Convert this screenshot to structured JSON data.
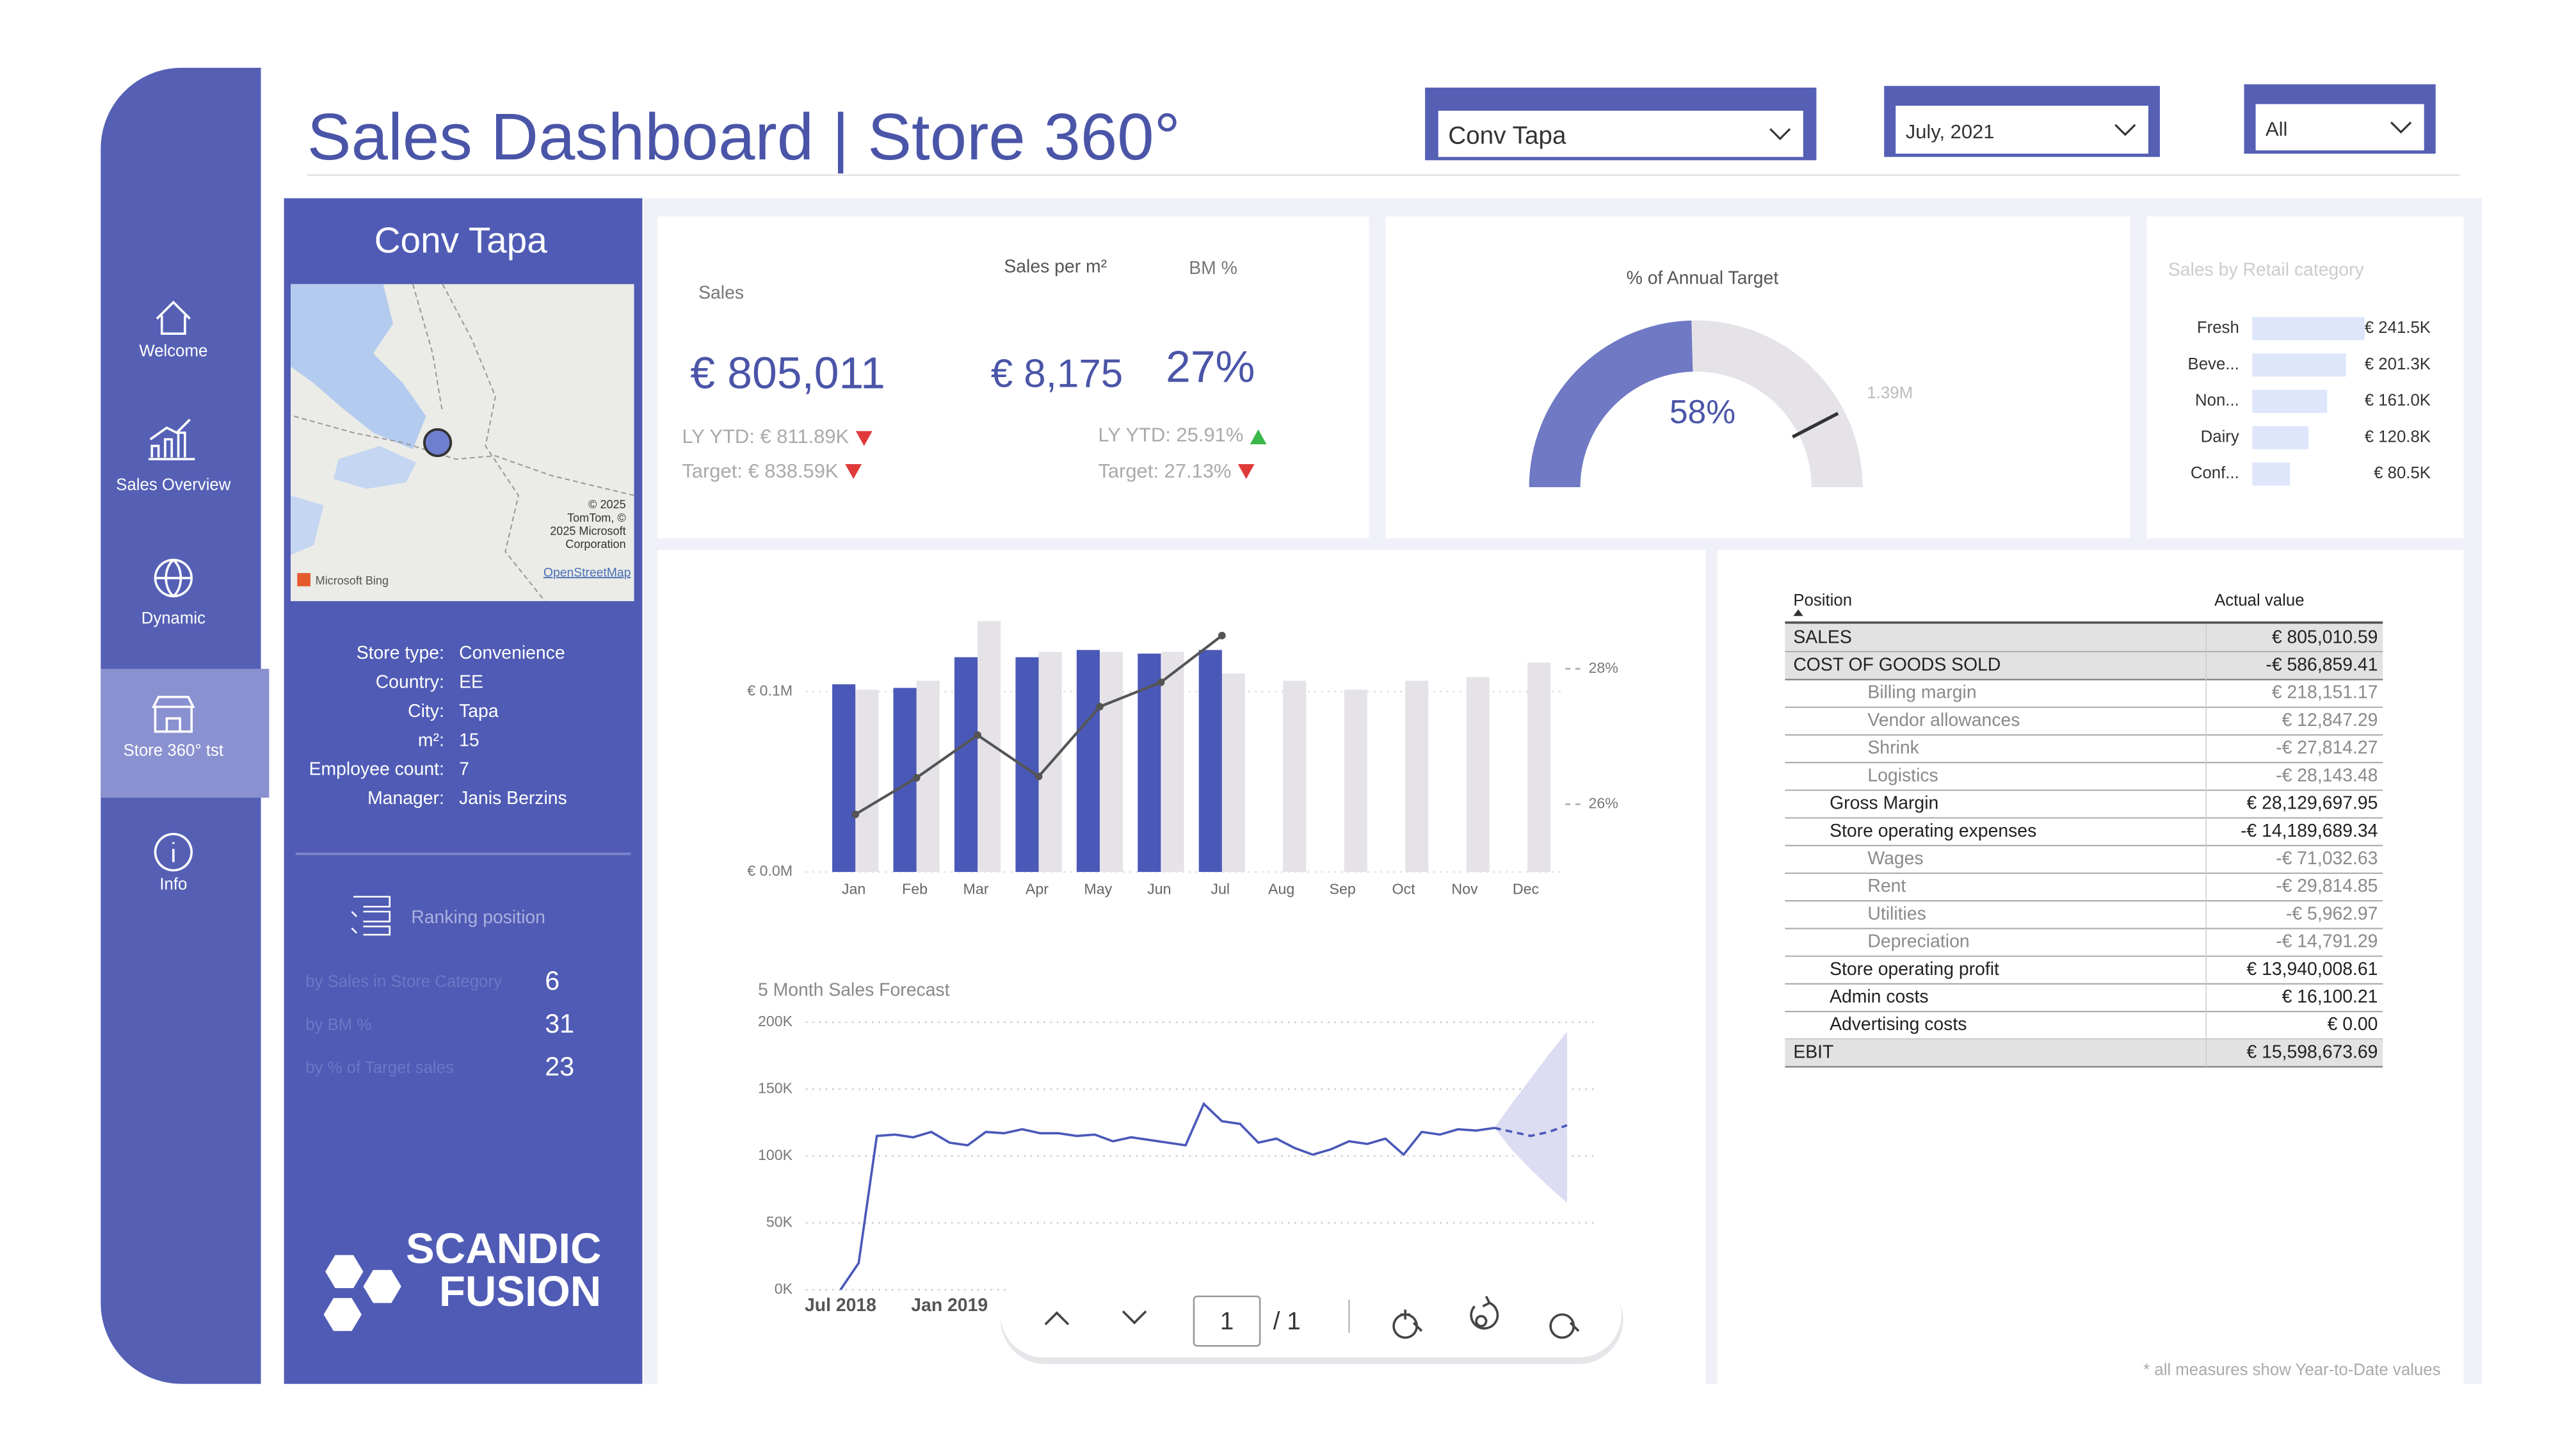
{
  "header": {
    "title": "Sales Dashboard | Store 360°",
    "filters": [
      "Conv Tapa",
      "July, 2021",
      "All"
    ]
  },
  "nav": [
    "Welcome",
    "Sales Overview",
    "Dynamic",
    "Store 360° tst",
    "Info"
  ],
  "store": {
    "name": "Conv Tapa",
    "map_credits": [
      "© 2025",
      "TomTom, ©",
      "2025 Microsoft",
      "Corporation"
    ],
    "map_link": "OpenStreetMap",
    "map_brand": "Microsoft Bing",
    "details": [
      [
        "Store type:",
        "Convenience"
      ],
      [
        "Country:",
        "EE"
      ],
      [
        "City:",
        "Tapa"
      ],
      [
        "m²:",
        "15"
      ],
      [
        "Employee count:",
        "7"
      ],
      [
        "Manager:",
        "Janis Berzins"
      ]
    ],
    "ranking_title": "Ranking position",
    "ranking": [
      [
        "by Sales in Store Category",
        6
      ],
      [
        "by BM %",
        31
      ],
      [
        "by % of Target sales",
        23
      ]
    ],
    "logo": [
      "SCANDIC",
      "FUSION"
    ]
  },
  "kpis": {
    "sales": {
      "label": "Sales",
      "value": "€ 805,011",
      "ly": "LY YTD: € 811.89K",
      "target": "Target: € 838.59K"
    },
    "per_m2": {
      "label": "Sales per m²",
      "value": "€ 8,175"
    },
    "bm": {
      "label": "BM %",
      "value": "27%",
      "ly": "LY YTD: 25.91%",
      "target": "Target: 27.13%"
    }
  },
  "chart_data": [
    {
      "type": "gauge",
      "title": "% of Annual Target",
      "values": [
        58
      ],
      "value_labels": [
        "58%"
      ],
      "ylim": [
        0,
        118
      ],
      "yticks": [
        {
          "value": 100,
          "label": "1.39M"
        }
      ],
      "color": "#6f79c4",
      "track_color": "#e6e3e8"
    },
    {
      "type": "hbar",
      "title": "Sales by Retail category",
      "categories": [
        "Fresh",
        "Beve...",
        "Non...",
        "Dairy",
        "Conf..."
      ],
      "values": [
        241.5,
        201.3,
        161.0,
        120.8,
        80.5
      ],
      "value_labels": [
        "€ 241.5K",
        "€ 201.3K",
        "€ 161.0K",
        "€ 120.8K",
        "€ 80.5K"
      ],
      "xlim": [
        0,
        241.5
      ],
      "color": "#dde6fb"
    },
    {
      "type": "bar_line",
      "categories": [
        "Jan",
        "Feb",
        "Mar",
        "Apr",
        "May",
        "Jun",
        "Jul",
        "Aug",
        "Sep",
        "Oct",
        "Nov",
        "Dec"
      ],
      "series": [
        {
          "color": "#e6e3e8",
          "values": [
            0.101,
            0.106,
            0.139,
            0.122,
            0.122,
            0.122,
            0.11,
            0.106,
            0.101,
            0.106,
            0.108,
            0.116
          ]
        },
        {
          "color": "#4a58b8",
          "values": [
            0.104,
            0.102,
            0.119,
            0.119,
            0.123,
            0.121,
            0.123,
            null,
            null,
            null,
            null,
            null
          ]
        },
        {
          "type": "line",
          "axis": "y2",
          "color": "#555555",
          "values": [
            25.85,
            26.39,
            27.02,
            26.41,
            27.44,
            27.8,
            28.49,
            null,
            null,
            null,
            null,
            null
          ]
        }
      ],
      "ylim": [
        0,
        0.14
      ],
      "yticks": [
        {
          "value": 0,
          "label": "€ 0.0M"
        },
        {
          "value": 0.1,
          "label": "€ 0.1M"
        }
      ],
      "y2lim": [
        25,
        28.73
      ],
      "y2ticks": [
        {
          "value": 26,
          "label": "26%"
        },
        {
          "value": 28,
          "label": "28%"
        }
      ],
      "grid": true
    },
    {
      "type": "forecast",
      "title": "5 Month Sales Forecast",
      "categories": [
        "Jul 2018",
        null,
        null,
        null,
        null,
        null,
        "Jan 2019",
        null,
        null,
        null,
        null,
        null,
        null,
        null,
        null,
        null,
        null,
        null,
        null,
        null,
        null,
        null,
        null,
        null,
        null,
        null,
        null,
        null,
        null,
        null,
        null,
        null,
        null,
        null,
        null,
        null,
        null,
        null,
        null,
        null,
        null
      ],
      "series": [
        {
          "color": "#4a58b8",
          "values": [
            0,
            20,
            115,
            116,
            114,
            118,
            110,
            108,
            118,
            117,
            120,
            117,
            117,
            115,
            116,
            111,
            114,
            112,
            110,
            108,
            139,
            126,
            124,
            110,
            113,
            106,
            101,
            105,
            111,
            109,
            113,
            101,
            118,
            116,
            120,
            119,
            121,
            null,
            null,
            null,
            null
          ]
        },
        {
          "color": "#4a58b8",
          "dashed": true,
          "values": [
            null,
            null,
            null,
            null,
            null,
            null,
            null,
            null,
            null,
            null,
            null,
            null,
            null,
            null,
            null,
            null,
            null,
            null,
            null,
            null,
            null,
            null,
            null,
            null,
            null,
            null,
            null,
            null,
            null,
            null,
            null,
            null,
            null,
            null,
            null,
            null,
            121,
            118,
            115,
            118,
            123
          ]
        }
      ],
      "band": {
        "color": "#dcdcf2",
        "upper": [
          null,
          null,
          null,
          null,
          null,
          null,
          null,
          null,
          null,
          null,
          null,
          null,
          null,
          null,
          null,
          null,
          null,
          null,
          null,
          null,
          null,
          null,
          null,
          null,
          null,
          null,
          null,
          null,
          null,
          null,
          null,
          null,
          null,
          null,
          null,
          null,
          121,
          140,
          158,
          176,
          193
        ],
        "lower": [
          null,
          null,
          null,
          null,
          null,
          null,
          null,
          null,
          null,
          null,
          null,
          null,
          null,
          null,
          null,
          null,
          null,
          null,
          null,
          null,
          null,
          null,
          null,
          null,
          null,
          null,
          null,
          null,
          null,
          null,
          null,
          null,
          null,
          null,
          null,
          null,
          121,
          104,
          90,
          77,
          65
        ]
      },
      "ylim": [
        0,
        200
      ],
      "yticks": [
        {
          "value": 0,
          "label": "0K"
        },
        {
          "value": 50,
          "label": "50K"
        },
        {
          "value": 100,
          "label": "100K"
        },
        {
          "value": 150,
          "label": "150K"
        },
        {
          "value": 200,
          "label": "200K"
        }
      ],
      "grid": true
    }
  ],
  "pnl": {
    "columns": [
      "Position",
      "Actual value"
    ],
    "rows": [
      [
        "SALES",
        "€ 805,010.59"
      ],
      [
        "COST OF GOODS SOLD",
        "-€ 586,859.41"
      ],
      [
        "Billing margin",
        "€ 218,151.17"
      ],
      [
        "Vendor allowances",
        "€ 12,847.29"
      ],
      [
        "Shrink",
        "-€ 27,814.27"
      ],
      [
        "Logistics",
        "-€ 28,143.48"
      ],
      [
        "Gross Margin",
        "€ 28,129,697.95"
      ],
      [
        "Store operating expenses",
        "-€ 14,189,689.34"
      ],
      [
        "Wages",
        "-€ 71,032.63"
      ],
      [
        "Rent",
        "-€ 29,814.85"
      ],
      [
        "Utilities",
        "-€ 5,962.97"
      ],
      [
        "Depreciation",
        "-€ 14,791.29"
      ],
      [
        "Store operating profit",
        "€ 13,940,008.61"
      ],
      [
        "Admin costs",
        "€ 16,100.21"
      ],
      [
        "Advertising costs",
        "€ 0.00"
      ],
      [
        "EBIT",
        "€ 15,598,673.69"
      ]
    ]
  },
  "toolbar": {
    "page": "1",
    "of": "/ 1"
  },
  "footnote": "* all measures show Year-to-Date values"
}
